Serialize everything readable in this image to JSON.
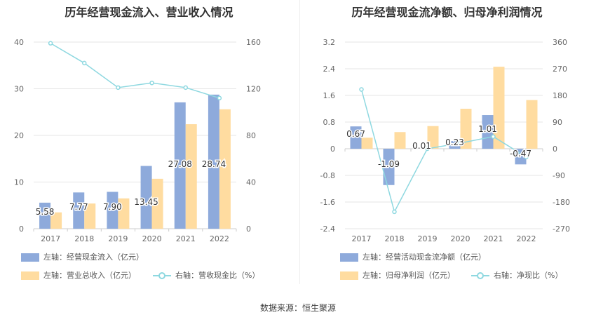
{
  "source": "数据来源：恒生聚源",
  "chart_data": [
    {
      "type": "bar",
      "title": "历年经营现金流入、营业收入情况",
      "categories": [
        "2017",
        "2018",
        "2019",
        "2020",
        "2021",
        "2022"
      ],
      "ylim_left": [
        0,
        40
      ],
      "yticks_left": [
        0,
        10,
        20,
        30,
        40
      ],
      "ylim_right": [
        0,
        160
      ],
      "yticks_right": [
        0,
        40,
        80,
        120,
        160
      ],
      "series": [
        {
          "name": "左轴：经营现金流入（亿元）",
          "axis": "left",
          "kind": "bar",
          "color": "#8eaadb",
          "values": [
            5.58,
            7.77,
            7.9,
            13.45,
            27.08,
            28.74
          ],
          "labels": [
            "5.58",
            "7.77",
            "7.90",
            "13.45",
            "27.08",
            "28.74"
          ]
        },
        {
          "name": "左轴：营业总收入（亿元）",
          "axis": "left",
          "kind": "bar",
          "color": "#ffdca0",
          "values": [
            3.5,
            5.4,
            6.5,
            10.7,
            22.4,
            25.6
          ]
        },
        {
          "name": "右轴：营收现金比（%）",
          "axis": "right",
          "kind": "line",
          "color": "#8ed8e0",
          "values": [
            159,
            142,
            121,
            125,
            121,
            112
          ]
        }
      ]
    },
    {
      "type": "bar",
      "title": "历年经营现金流净额、归母净利润情况",
      "categories": [
        "2017",
        "2018",
        "2019",
        "2020",
        "2021",
        "2022"
      ],
      "ylim_left": [
        -2.4,
        3.2
      ],
      "yticks_left": [
        -2.4,
        -1.6,
        -0.8,
        0,
        0.8,
        1.6,
        2.4,
        3.2
      ],
      "yticklabels_left": [
        "-2.4",
        "-1.6",
        "-0.8",
        "0",
        "0.8",
        "1.6",
        "2.4",
        "3.2"
      ],
      "ylim_right": [
        -270,
        360
      ],
      "yticks_right": [
        -270,
        -180,
        -90,
        0,
        90,
        180,
        270,
        360
      ],
      "series": [
        {
          "name": "左轴：经营活动现金流净额（亿元）",
          "axis": "left",
          "kind": "bar",
          "color": "#8eaadb",
          "values": [
            0.67,
            -1.09,
            0.01,
            0.23,
            1.01,
            -0.47
          ],
          "labels": [
            "0.67",
            "-1.09",
            "0.01",
            "0.23",
            "1.01",
            "-0.47"
          ]
        },
        {
          "name": "左轴：归母净利润（亿元）",
          "axis": "left",
          "kind": "bar",
          "color": "#ffdca0",
          "values": [
            0.33,
            0.5,
            0.68,
            1.2,
            2.46,
            1.46
          ]
        },
        {
          "name": "右轴：净现比（%）",
          "axis": "right",
          "kind": "line",
          "color": "#8ed8e0",
          "values": [
            200,
            -213,
            0,
            19,
            41,
            -28
          ]
        }
      ]
    }
  ]
}
